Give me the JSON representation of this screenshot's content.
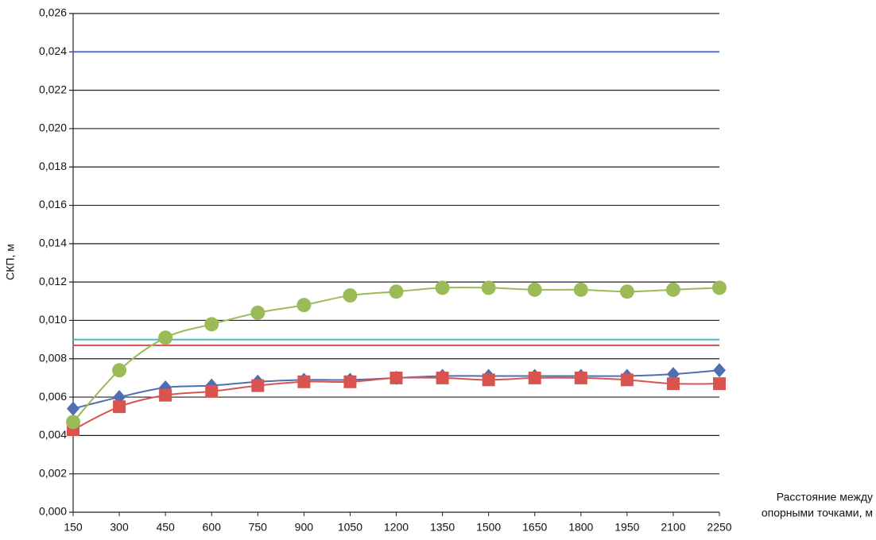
{
  "chart_data": {
    "type": "line",
    "ylabel": "СКП, м",
    "xlabel": [
      "Расстояние между",
      "опорными точками, м"
    ],
    "x": [
      150,
      300,
      450,
      600,
      750,
      900,
      1050,
      1200,
      1350,
      1500,
      1650,
      1800,
      1950,
      2100,
      2250
    ],
    "xlim": [
      150,
      2250
    ],
    "xticks": [
      150,
      300,
      450,
      600,
      750,
      900,
      1050,
      1200,
      1350,
      1500,
      1650,
      1800,
      1950,
      2100,
      2250
    ],
    "ylim": [
      0,
      0.026
    ],
    "yticks": [
      {
        "value": 0,
        "label": "0,000"
      },
      {
        "value": 0.002,
        "label": "0,002"
      },
      {
        "value": 0.004,
        "label": "0,004"
      },
      {
        "value": 0.006,
        "label": "0,006"
      },
      {
        "value": 0.008,
        "label": "0,008"
      },
      {
        "value": 0.01,
        "label": "0,010"
      },
      {
        "value": 0.012,
        "label": "0,012"
      },
      {
        "value": 0.014,
        "label": "0,014"
      },
      {
        "value": 0.016,
        "label": "0,016"
      },
      {
        "value": 0.018,
        "label": "0,018"
      },
      {
        "value": 0.02,
        "label": "0,020"
      },
      {
        "value": 0.022,
        "label": "0,022"
      },
      {
        "value": 0.024,
        "label": "0,024"
      },
      {
        "value": 0.026,
        "label": "0,026"
      }
    ],
    "grid": true,
    "reference_lines": [
      {
        "value": 0.024,
        "color": "#5a6fc4"
      },
      {
        "value": 0.009,
        "color": "#4bb4c8"
      },
      {
        "value": 0.0087,
        "color": "#d0504d"
      }
    ],
    "series": [
      {
        "color": "#4f6fb0",
        "marker": "diamond",
        "values": [
          0.0054,
          0.006,
          0.0065,
          0.0066,
          0.0068,
          0.0069,
          0.0069,
          0.007,
          0.0071,
          0.0071,
          0.0071,
          0.0071,
          0.0071,
          0.0072,
          0.0074
        ]
      },
      {
        "color": "#d9534f",
        "marker": "square",
        "values": [
          0.0043,
          0.0055,
          0.0061,
          0.0063,
          0.0066,
          0.0068,
          0.0068,
          0.007,
          0.007,
          0.0069,
          0.007,
          0.007,
          0.0069,
          0.0067,
          0.0067
        ]
      },
      {
        "color": "#9bbb59",
        "marker": "circle",
        "values": [
          0.0047,
          0.0074,
          0.0091,
          0.0098,
          0.0104,
          0.0108,
          0.0113,
          0.0115,
          0.0117,
          0.0117,
          0.0116,
          0.0116,
          0.0115,
          0.0116,
          0.0117
        ]
      }
    ]
  }
}
